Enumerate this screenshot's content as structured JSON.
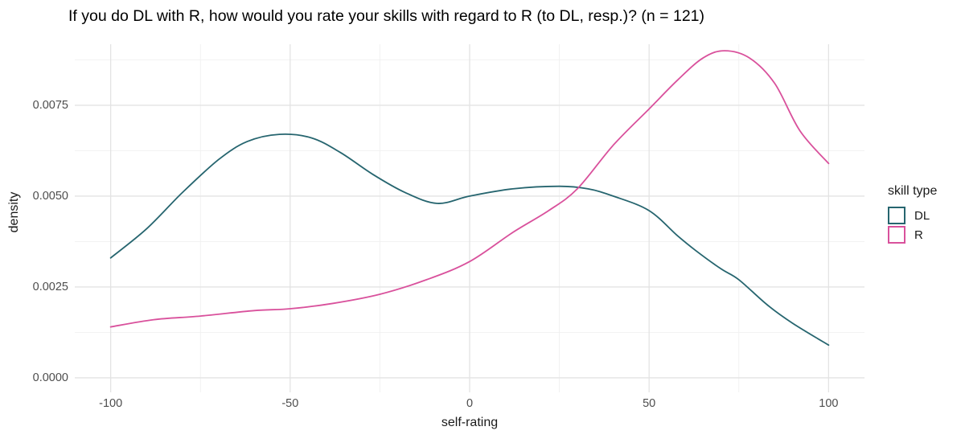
{
  "chart_data": {
    "type": "line",
    "subtype": "density-curves",
    "title": "If you do DL with R, how would you rate your skills with regard to R (to DL, resp.)? (n = 121)",
    "xlabel": "self-rating",
    "ylabel": "density",
    "legend_title": "skill type",
    "legend_position": "right",
    "grid": true,
    "xlim": [
      -110,
      110
    ],
    "ylim": [
      -0.0004,
      0.00918
    ],
    "x_ticks": [
      -100,
      -50,
      0,
      50,
      100
    ],
    "x_tick_labels": [
      "-100",
      "-50",
      "0",
      "50",
      "100"
    ],
    "x_minor_ticks": [
      -75,
      -25,
      25,
      75
    ],
    "y_ticks": [
      0,
      0.0025,
      0.005,
      0.0075
    ],
    "y_tick_labels": [
      "0.0000",
      "0.0025",
      "0.0050",
      "0.0075"
    ],
    "y_minor_ticks": [
      0.00125,
      0.00375,
      0.00625,
      0.00875
    ],
    "series": [
      {
        "name": "DL",
        "color": "#26656F",
        "points": [
          [
            -100,
            0.0033
          ],
          [
            -90,
            0.0041
          ],
          [
            -80,
            0.0051
          ],
          [
            -70,
            0.006
          ],
          [
            -62,
            0.0065
          ],
          [
            -53,
            0.0067
          ],
          [
            -44,
            0.0066
          ],
          [
            -36,
            0.0062
          ],
          [
            -27,
            0.0056
          ],
          [
            -18,
            0.0051
          ],
          [
            -9,
            0.0048
          ],
          [
            0,
            0.005
          ],
          [
            12,
            0.0052
          ],
          [
            25,
            0.00527
          ],
          [
            33,
            0.0052
          ],
          [
            40,
            0.005
          ],
          [
            50,
            0.0046
          ],
          [
            58,
            0.0039
          ],
          [
            63,
            0.0035
          ],
          [
            70,
            0.003
          ],
          [
            75,
            0.0027
          ],
          [
            83,
            0.002
          ],
          [
            90,
            0.0015
          ],
          [
            100,
            0.0009
          ]
        ]
      },
      {
        "name": "R",
        "color": "#D9519C",
        "points": [
          [
            -100,
            0.0014
          ],
          [
            -88,
            0.0016
          ],
          [
            -75,
            0.0017
          ],
          [
            -60,
            0.00185
          ],
          [
            -50,
            0.0019
          ],
          [
            -38,
            0.00205
          ],
          [
            -25,
            0.0023
          ],
          [
            -12,
            0.0027
          ],
          [
            0,
            0.0032
          ],
          [
            12,
            0.004
          ],
          [
            22,
            0.0046
          ],
          [
            30,
            0.0052
          ],
          [
            40,
            0.0064
          ],
          [
            50,
            0.0074
          ],
          [
            58,
            0.0082
          ],
          [
            65,
            0.0088
          ],
          [
            71,
            0.009
          ],
          [
            78,
            0.0088
          ],
          [
            85,
            0.0081
          ],
          [
            92,
            0.0068
          ],
          [
            100,
            0.0059
          ]
        ]
      }
    ],
    "style": {
      "major_grid_color": "#E3E3E3",
      "minor_grid_color": "#F0F0F0",
      "background": "#FFFFFF",
      "curve_width": 1.8
    }
  }
}
